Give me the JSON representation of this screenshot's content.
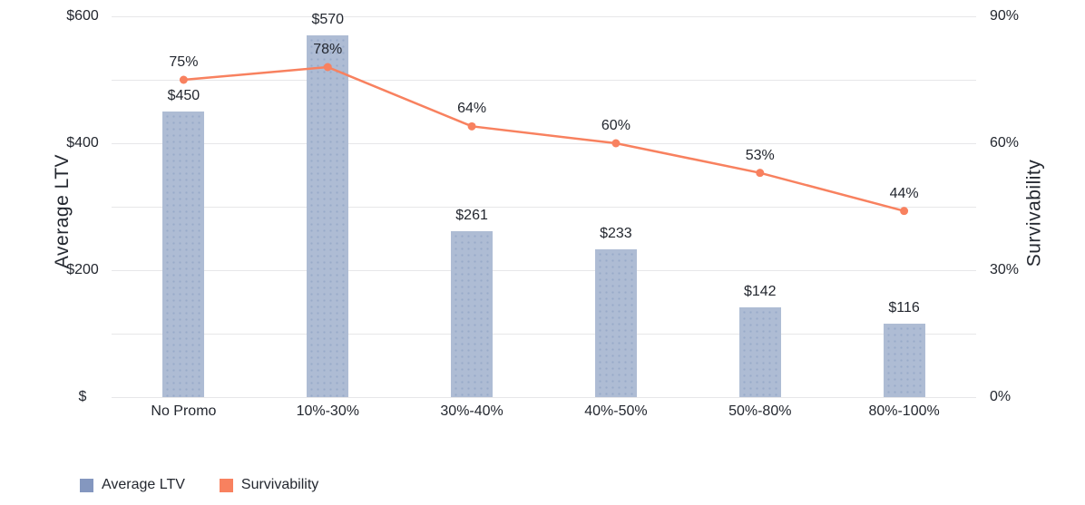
{
  "chart_data": {
    "type": "combo-bar-line",
    "title": "",
    "categories": [
      "No Promo",
      "10%-30%",
      "30%-40%",
      "40%-50%",
      "50%-80%",
      "80%-100%"
    ],
    "series": [
      {
        "name": "Average LTV",
        "type": "bar",
        "axis": "left",
        "values": [
          450,
          570,
          261,
          233,
          142,
          116
        ],
        "value_labels": [
          "$450",
          "$570",
          "$261",
          "$233",
          "$142",
          "$116"
        ],
        "color": "#aebcd4"
      },
      {
        "name": "Survivability",
        "type": "line",
        "axis": "right",
        "values": [
          75,
          78,
          64,
          60,
          53,
          44
        ],
        "value_labels": [
          "75%",
          "78%",
          "64%",
          "60%",
          "53%",
          "44%"
        ],
        "color": "#f8815f"
      }
    ],
    "axes": {
      "left": {
        "title": "Average LTV",
        "min": 0,
        "max": 600,
        "gridline_step": 100,
        "ticks": [
          {
            "value": 600,
            "label": "$600"
          },
          {
            "value": 400,
            "label": "$400"
          },
          {
            "value": 200,
            "label": "$200"
          },
          {
            "value": 0,
            "label": "$"
          }
        ]
      },
      "right": {
        "title": "Survivability",
        "min": 0,
        "max": 90,
        "ticks": [
          {
            "value": 90,
            "label": "90%"
          },
          {
            "value": 60,
            "label": "60%"
          },
          {
            "value": 30,
            "label": "30%"
          },
          {
            "value": 0,
            "label": "0%"
          }
        ]
      }
    },
    "grid": true,
    "legend": {
      "position": "bottom-left",
      "items": [
        {
          "label": "Average LTV",
          "color": "#8497bf"
        },
        {
          "label": "Survivability",
          "color": "#f8815f"
        }
      ]
    },
    "colors": {
      "background": "#ffffff",
      "text": "#23272f",
      "gridline": "#e7e7e9",
      "bar_fill": "#aebcd4",
      "bar_dot": "#98aac9",
      "line": "#f8815f"
    }
  }
}
